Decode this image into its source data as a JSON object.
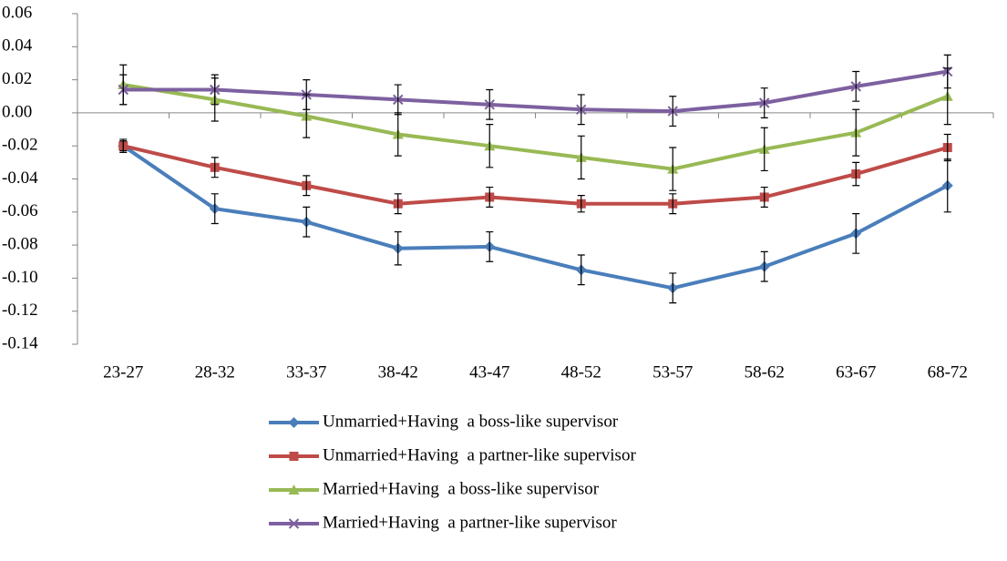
{
  "chart_data": {
    "type": "line",
    "categories": [
      "23-27",
      "28-32",
      "33-37",
      "38-42",
      "43-47",
      "48-52",
      "53-57",
      "58-62",
      "63-67",
      "68-72"
    ],
    "series": [
      {
        "name": "Unmarried+Having  a boss-like supervisor",
        "color": "#4a7ebb",
        "marker": "diamond",
        "values": [
          -0.02,
          -0.058,
          -0.066,
          -0.082,
          -0.081,
          -0.095,
          -0.106,
          -0.093,
          -0.073,
          -0.044
        ],
        "errors": [
          0.003,
          0.009,
          0.009,
          0.01,
          0.009,
          0.009,
          0.009,
          0.009,
          0.012,
          0.016
        ]
      },
      {
        "name": "Unmarried+Having  a partner-like supervisor",
        "color": "#be4b48",
        "marker": "square",
        "values": [
          -0.02,
          -0.033,
          -0.044,
          -0.055,
          -0.051,
          -0.055,
          -0.055,
          -0.051,
          -0.037,
          -0.021
        ],
        "errors": [
          0.004,
          0.006,
          0.006,
          0.006,
          0.006,
          0.005,
          0.006,
          0.006,
          0.007,
          0.008
        ]
      },
      {
        "name": "Married+Having  a boss-like supervisor",
        "color": "#98b954",
        "marker": "triangle",
        "values": [
          0.017,
          0.008,
          -0.002,
          -0.013,
          -0.02,
          -0.027,
          -0.034,
          -0.022,
          -0.012,
          0.01
        ],
        "errors": [
          0.012,
          0.013,
          0.013,
          0.013,
          0.013,
          0.013,
          0.013,
          0.013,
          0.014,
          0.017
        ]
      },
      {
        "name": "Married+Having  a partner-like supervisor",
        "color": "#7d60a0",
        "marker": "x",
        "values": [
          0.014,
          0.014,
          0.011,
          0.008,
          0.005,
          0.002,
          0.001,
          0.006,
          0.016,
          0.025
        ],
        "errors": [
          0.009,
          0.009,
          0.009,
          0.009,
          0.009,
          0.009,
          0.009,
          0.009,
          0.009,
          0.01
        ]
      }
    ],
    "ylim": [
      -0.14,
      0.06
    ],
    "yticks": [
      {
        "value": -0.14,
        "label": "-0.14"
      },
      {
        "value": -0.12,
        "label": "-0.12"
      },
      {
        "value": -0.1,
        "label": "-0.10"
      },
      {
        "value": -0.08,
        "label": "-0.08"
      },
      {
        "value": -0.06,
        "label": "-0.06"
      },
      {
        "value": -0.04,
        "label": "-0.04"
      },
      {
        "value": -0.02,
        "label": "-0.02"
      },
      {
        "value": 0,
        "label": "0.00"
      },
      {
        "value": 0.02,
        "label": "0.02"
      },
      {
        "value": 0.04,
        "label": "0.04"
      },
      {
        "value": 0.06,
        "label": "0.06"
      }
    ],
    "grid": false,
    "legend": "bottom"
  }
}
